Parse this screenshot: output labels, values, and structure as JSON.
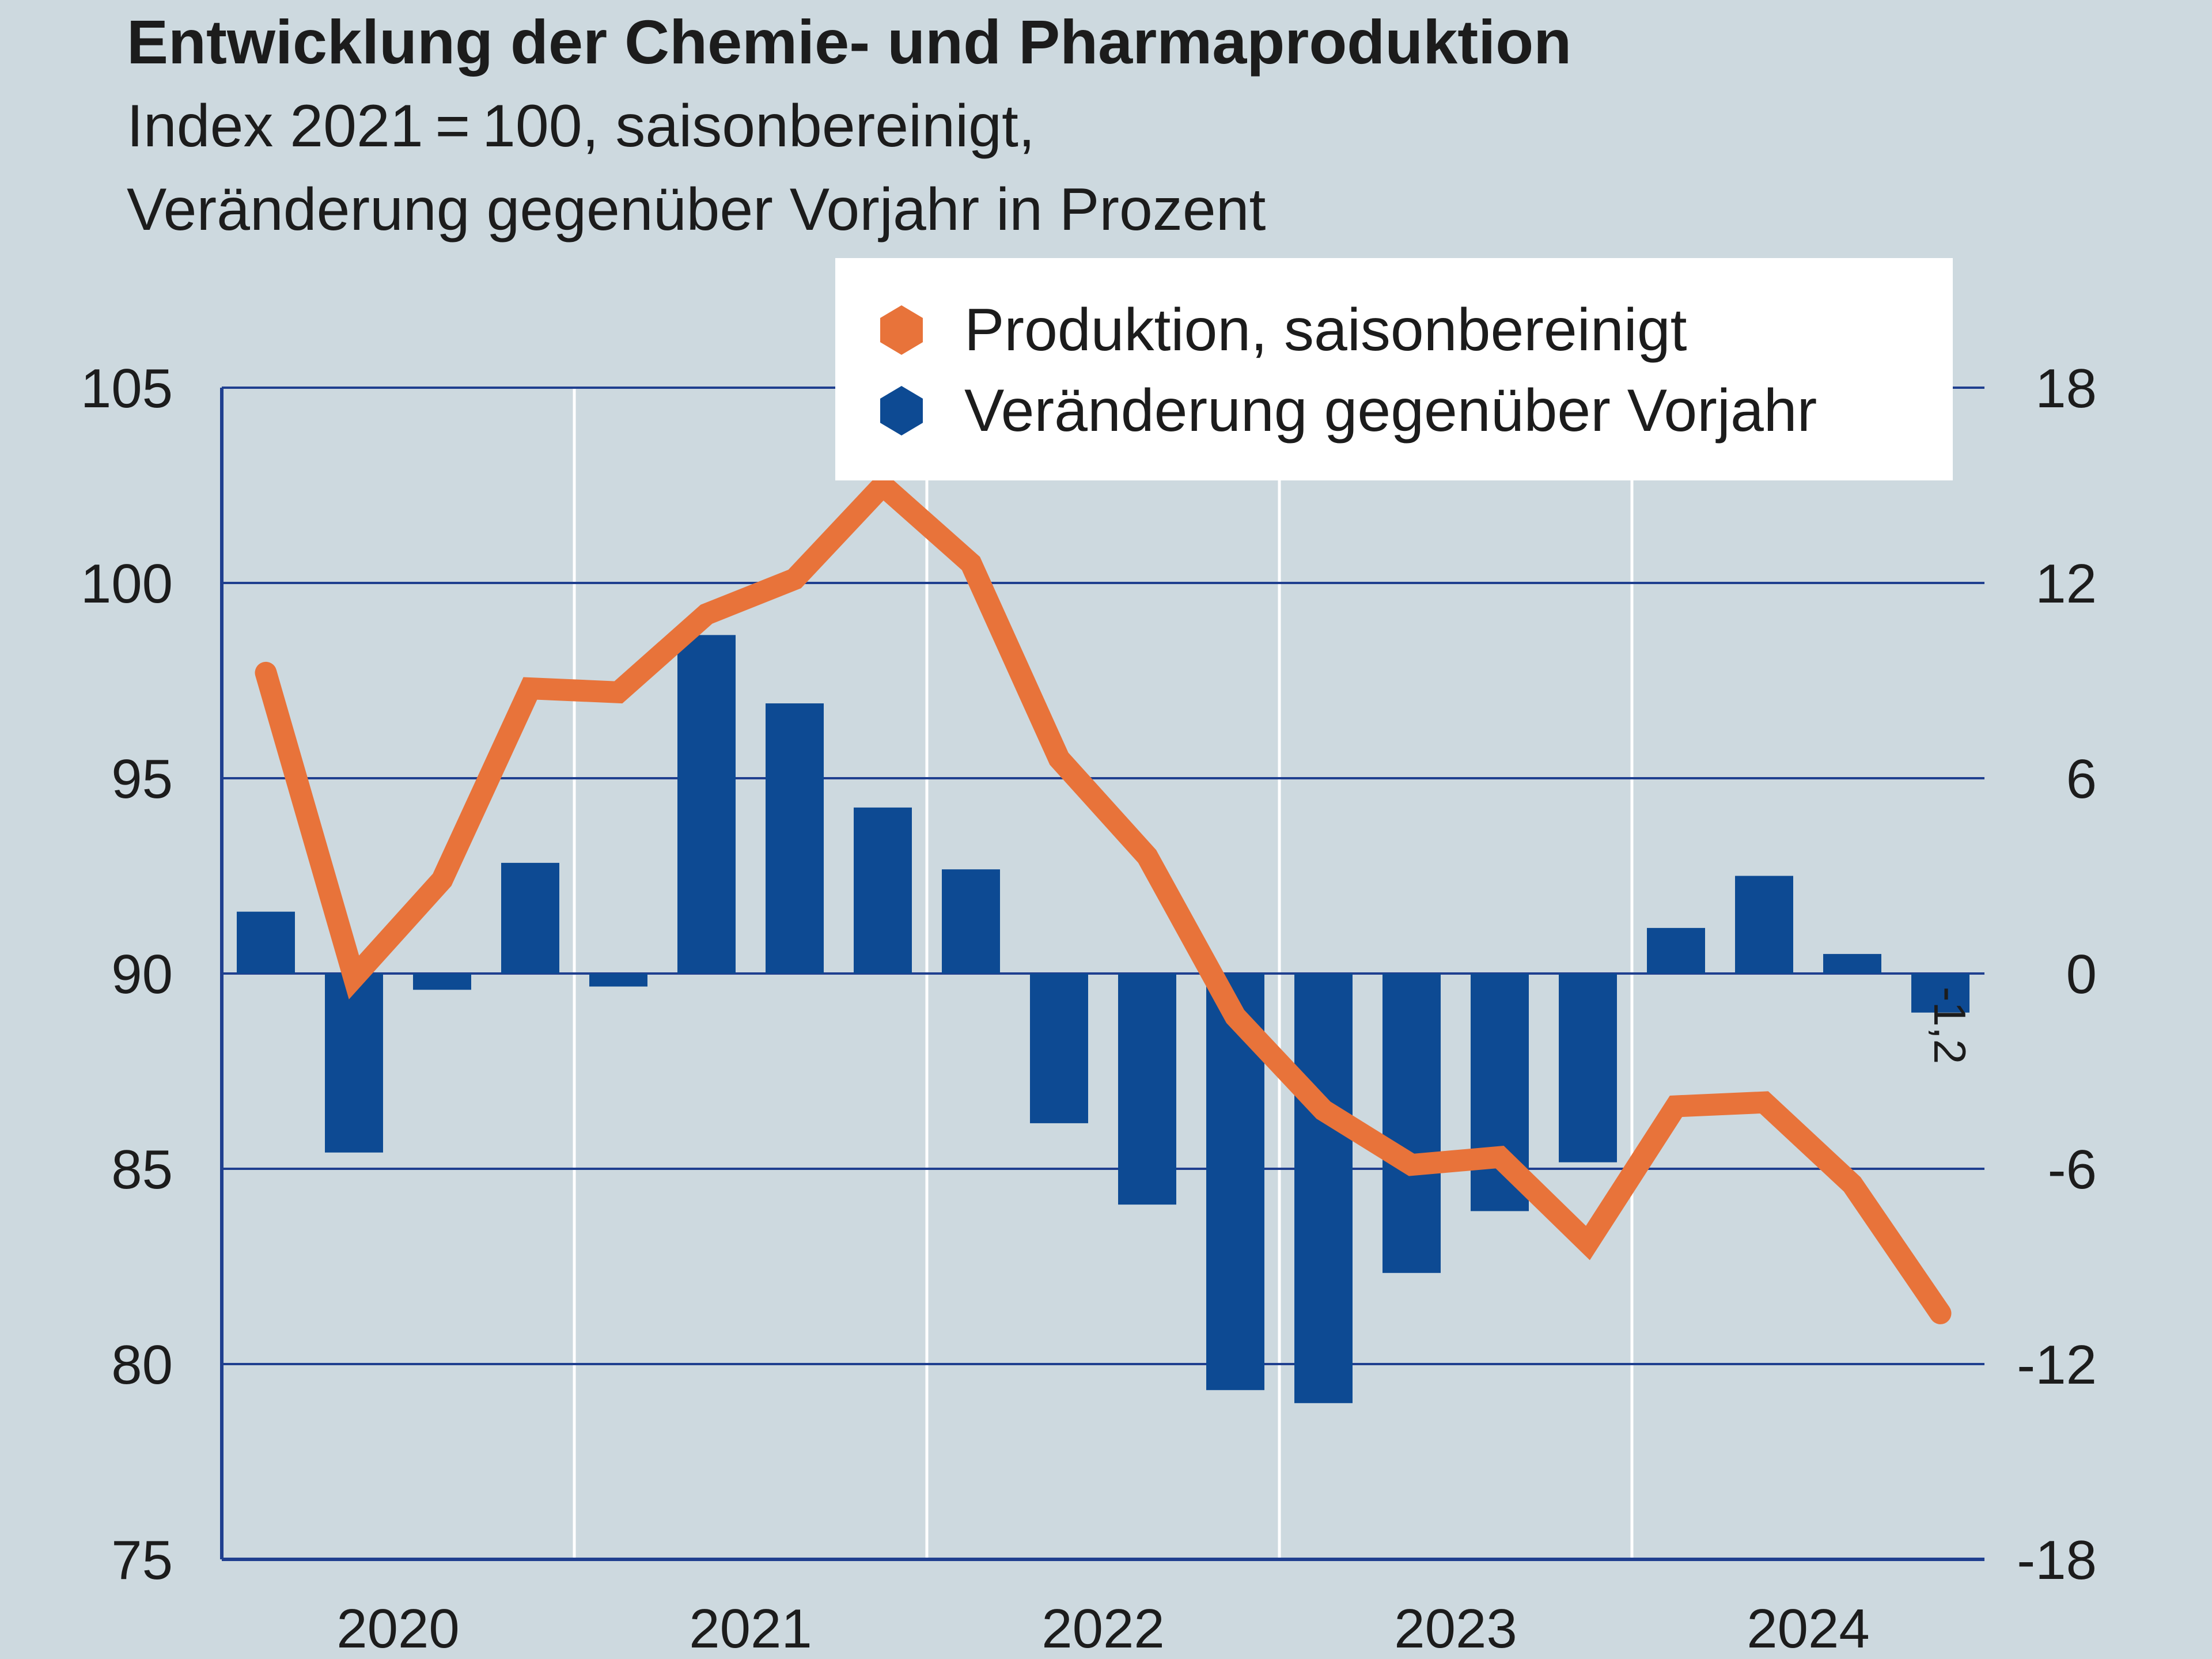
{
  "title": "Entwicklung der Chemie- und Pharmaproduktion",
  "subtitle_line1": "Index 2021 = 100, saisonbereinigt,",
  "subtitle_line2": "Veränderung gegenüber Vorjahr in Prozent",
  "colors": {
    "background": "#cdd9df",
    "production_line": "#e8733a",
    "change_bars": "#0d4a93",
    "axis": "#1f3f8f",
    "grid": "#1f3f8f",
    "year_separator": "#ffffff"
  },
  "chart_data": {
    "type": "bar+line",
    "categories": [
      "2020 Q1",
      "2020 Q2",
      "2020 Q3",
      "2020 Q4",
      "2021 Q1",
      "2021 Q2",
      "2021 Q3",
      "2021 Q4",
      "2022 Q1",
      "2022 Q2",
      "2022 Q3",
      "2022 Q4",
      "2023 Q1",
      "2023 Q2",
      "2023 Q3",
      "2023 Q4",
      "2024 Q1",
      "2024 Q2",
      "2024 Q3",
      "2024 Q4"
    ],
    "x_tick_labels": [
      "2020",
      "2021",
      "2022",
      "2023",
      "2024"
    ],
    "series": [
      {
        "name": "Produktion, saisonbereinigt",
        "type": "line",
        "axis": "left",
        "values": [
          97.7,
          89.9,
          92.4,
          97.3,
          97.2,
          99.2,
          100.1,
          102.5,
          100.5,
          95.5,
          93.0,
          88.9,
          86.5,
          85.1,
          85.3,
          83.1,
          86.6,
          86.7,
          84.6,
          81.3
        ]
      },
      {
        "name": "Veränderung gegenüber Vorjahr",
        "type": "bar",
        "axis": "right",
        "values": [
          1.9,
          -5.5,
          -0.5,
          3.4,
          -0.4,
          10.4,
          8.3,
          5.1,
          3.2,
          -4.6,
          -7.1,
          -12.8,
          -13.2,
          -9.2,
          -7.3,
          -5.8,
          1.4,
          3.0,
          0.6,
          -1.2
        ]
      }
    ],
    "y_left": {
      "lim": [
        75,
        105
      ],
      "ticks": [
        75,
        80,
        85,
        90,
        95,
        100,
        105
      ],
      "ylabel": ""
    },
    "y_right": {
      "lim": [
        -18,
        18
      ],
      "ticks": [
        "-18",
        "-12",
        "-6",
        "0",
        "6",
        "12",
        "18"
      ],
      "ylabel": ""
    },
    "annotations": [
      {
        "text": "-1,2",
        "series": "Veränderung gegenüber Vorjahr",
        "index": 19
      }
    ],
    "grid": true,
    "legend_position": "top-right"
  }
}
